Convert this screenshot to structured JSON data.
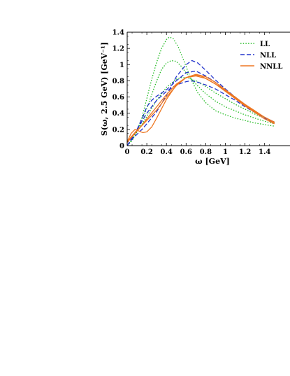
{
  "chart_data": {
    "type": "line",
    "xlabel": "ω [GeV]",
    "ylabel": "S(ω, 2.5 GeV) [GeV⁻¹]",
    "xlim": [
      0,
      1.5
    ],
    "ylim": [
      0,
      1.4
    ],
    "x_ticks": [
      "0",
      "0.2",
      "0.4",
      "0.6",
      "0.8",
      "1",
      "1.2",
      "1.4"
    ],
    "y_ticks": [
      "0",
      "0.2",
      "0.4",
      "0.6",
      "0.8",
      "1",
      "1.2",
      "1.4"
    ],
    "legend_position": "top-right",
    "grid": false,
    "series": [
      {
        "name": "LL",
        "style": "dotted",
        "color": "#22bb22",
        "curves": [
          [
            [
              0,
              0
            ],
            [
              0.05,
              0.06
            ],
            [
              0.1,
              0.18
            ],
            [
              0.15,
              0.35
            ],
            [
              0.2,
              0.58
            ],
            [
              0.25,
              0.82
            ],
            [
              0.3,
              1.03
            ],
            [
              0.35,
              1.2
            ],
            [
              0.4,
              1.31
            ],
            [
              0.43,
              1.34
            ],
            [
              0.47,
              1.32
            ],
            [
              0.52,
              1.22
            ],
            [
              0.58,
              1.04
            ],
            [
              0.65,
              0.82
            ],
            [
              0.72,
              0.65
            ],
            [
              0.8,
              0.53
            ],
            [
              0.9,
              0.43
            ],
            [
              1,
              0.38
            ],
            [
              1.1,
              0.34
            ],
            [
              1.2,
              0.31
            ],
            [
              1.3,
              0.28
            ],
            [
              1.4,
              0.26
            ],
            [
              1.5,
              0.24
            ]
          ],
          [
            [
              0,
              0
            ],
            [
              0.05,
              0.07
            ],
            [
              0.1,
              0.17
            ],
            [
              0.15,
              0.3
            ],
            [
              0.2,
              0.46
            ],
            [
              0.25,
              0.63
            ],
            [
              0.3,
              0.8
            ],
            [
              0.35,
              0.94
            ],
            [
              0.4,
              1.02
            ],
            [
              0.45,
              1.05
            ],
            [
              0.5,
              1.04
            ],
            [
              0.55,
              0.98
            ],
            [
              0.6,
              0.9
            ],
            [
              0.7,
              0.76
            ],
            [
              0.8,
              0.64
            ],
            [
              0.9,
              0.55
            ],
            [
              1,
              0.48
            ],
            [
              1.1,
              0.43
            ],
            [
              1.2,
              0.38
            ],
            [
              1.3,
              0.34
            ],
            [
              1.4,
              0.3
            ],
            [
              1.5,
              0.27
            ]
          ],
          [
            [
              0,
              0
            ],
            [
              0.05,
              0.08
            ],
            [
              0.1,
              0.17
            ],
            [
              0.15,
              0.26
            ],
            [
              0.2,
              0.36
            ],
            [
              0.3,
              0.56
            ],
            [
              0.4,
              0.72
            ],
            [
              0.5,
              0.82
            ],
            [
              0.55,
              0.84
            ],
            [
              0.6,
              0.84
            ],
            [
              0.7,
              0.8
            ],
            [
              0.8,
              0.73
            ],
            [
              0.9,
              0.65
            ],
            [
              1,
              0.58
            ],
            [
              1.1,
              0.51
            ],
            [
              1.2,
              0.45
            ],
            [
              1.3,
              0.39
            ],
            [
              1.4,
              0.34
            ],
            [
              1.5,
              0.29
            ]
          ]
        ]
      },
      {
        "name": "NLL",
        "style": "dashed",
        "color": "#2233cc",
        "curves": [
          [
            [
              0,
              0
            ],
            [
              0.05,
              0.1
            ],
            [
              0.1,
              0.2
            ],
            [
              0.15,
              0.3
            ],
            [
              0.2,
              0.4
            ],
            [
              0.3,
              0.56
            ],
            [
              0.4,
              0.67
            ],
            [
              0.5,
              0.75
            ],
            [
              0.6,
              0.79
            ],
            [
              0.65,
              0.8
            ],
            [
              0.7,
              0.79
            ],
            [
              0.8,
              0.75
            ],
            [
              0.9,
              0.7
            ],
            [
              1,
              0.63
            ],
            [
              1.1,
              0.56
            ],
            [
              1.2,
              0.48
            ],
            [
              1.3,
              0.41
            ],
            [
              1.4,
              0.34
            ],
            [
              1.5,
              0.28
            ]
          ],
          [
            [
              0,
              0
            ],
            [
              0.05,
              0.09
            ],
            [
              0.1,
              0.2
            ],
            [
              0.15,
              0.33
            ],
            [
              0.2,
              0.48
            ],
            [
              0.25,
              0.56
            ],
            [
              0.3,
              0.61
            ],
            [
              0.4,
              0.69
            ],
            [
              0.5,
              0.8
            ],
            [
              0.6,
              0.9
            ],
            [
              0.7,
              0.92
            ],
            [
              0.8,
              0.86
            ],
            [
              0.9,
              0.78
            ],
            [
              1,
              0.68
            ],
            [
              1.1,
              0.58
            ],
            [
              1.2,
              0.5
            ],
            [
              1.3,
              0.42
            ],
            [
              1.4,
              0.35
            ],
            [
              1.5,
              0.29
            ]
          ],
          [
            [
              0,
              0
            ],
            [
              0.05,
              0.08
            ],
            [
              0.1,
              0.14
            ],
            [
              0.15,
              0.2
            ],
            [
              0.2,
              0.27
            ],
            [
              0.3,
              0.42
            ],
            [
              0.4,
              0.62
            ],
            [
              0.5,
              0.85
            ],
            [
              0.6,
              1.0
            ],
            [
              0.66,
              1.05
            ],
            [
              0.72,
              1.02
            ],
            [
              0.8,
              0.93
            ],
            [
              0.9,
              0.81
            ],
            [
              1,
              0.7
            ],
            [
              1.1,
              0.6
            ],
            [
              1.2,
              0.5
            ],
            [
              1.3,
              0.42
            ],
            [
              1.4,
              0.35
            ],
            [
              1.5,
              0.28
            ]
          ]
        ]
      },
      {
        "name": "NNLL",
        "style": "solid",
        "color": "#ee7722",
        "curves": [
          [
            [
              0,
              0.05
            ],
            [
              0.04,
              0.15
            ],
            [
              0.08,
              0.2
            ],
            [
              0.12,
              0.18
            ],
            [
              0.16,
              0.16
            ],
            [
              0.2,
              0.17
            ],
            [
              0.25,
              0.23
            ],
            [
              0.3,
              0.34
            ],
            [
              0.4,
              0.57
            ],
            [
              0.5,
              0.75
            ],
            [
              0.6,
              0.84
            ],
            [
              0.68,
              0.87
            ],
            [
              0.75,
              0.86
            ],
            [
              0.8,
              0.83
            ],
            [
              0.9,
              0.76
            ],
            [
              1,
              0.67
            ],
            [
              1.1,
              0.58
            ],
            [
              1.2,
              0.49
            ],
            [
              1.3,
              0.41
            ],
            [
              1.4,
              0.33
            ],
            [
              1.5,
              0.27
            ]
          ],
          [
            [
              0,
              0.05
            ],
            [
              0.05,
              0.12
            ],
            [
              0.1,
              0.19
            ],
            [
              0.15,
              0.25
            ],
            [
              0.2,
              0.31
            ],
            [
              0.3,
              0.44
            ],
            [
              0.4,
              0.6
            ],
            [
              0.5,
              0.74
            ],
            [
              0.6,
              0.84
            ],
            [
              0.7,
              0.88
            ],
            [
              0.8,
              0.85
            ],
            [
              0.9,
              0.78
            ],
            [
              1,
              0.69
            ],
            [
              1.1,
              0.6
            ],
            [
              1.2,
              0.51
            ],
            [
              1.3,
              0.43
            ],
            [
              1.4,
              0.35
            ],
            [
              1.5,
              0.28
            ]
          ],
          [
            [
              0,
              0.04
            ],
            [
              0.05,
              0.11
            ],
            [
              0.1,
              0.18
            ],
            [
              0.15,
              0.25
            ],
            [
              0.2,
              0.33
            ],
            [
              0.3,
              0.48
            ],
            [
              0.4,
              0.63
            ],
            [
              0.5,
              0.76
            ],
            [
              0.6,
              0.84
            ],
            [
              0.7,
              0.86
            ],
            [
              0.8,
              0.83
            ],
            [
              0.9,
              0.76
            ],
            [
              1,
              0.68
            ],
            [
              1.1,
              0.59
            ],
            [
              1.2,
              0.5
            ],
            [
              1.3,
              0.42
            ],
            [
              1.4,
              0.35
            ],
            [
              1.5,
              0.29
            ]
          ]
        ]
      }
    ]
  }
}
